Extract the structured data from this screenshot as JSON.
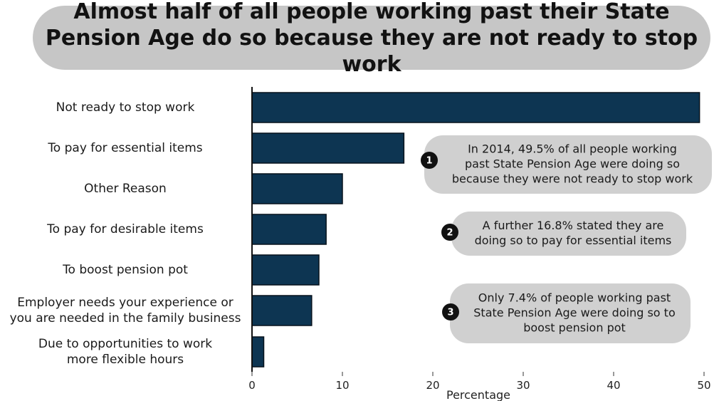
{
  "title": "Almost half of all people working past their State Pension Age do so because they are not ready to stop work",
  "chart_data": {
    "type": "bar",
    "orientation": "horizontal",
    "categories": [
      [
        "Not ready to stop work"
      ],
      [
        "To pay for essential items"
      ],
      [
        "Other Reason"
      ],
      [
        "To pay for desirable items"
      ],
      [
        "To boost pension pot"
      ],
      [
        "Employer needs your experience or",
        "you are needed in the family business"
      ],
      [
        "Due to opportunities to work",
        "more flexible hours"
      ]
    ],
    "values": [
      49.5,
      16.8,
      10.0,
      8.2,
      7.4,
      6.6,
      1.3
    ],
    "xlabel": "Percentage",
    "xlim": [
      0,
      50
    ],
    "xticks": [
      0,
      10,
      20,
      30,
      40,
      50
    ],
    "grid": false,
    "colors": {
      "bar": "#0d3552",
      "bar_stroke": "#07121c",
      "callout_bg": "#d0d0d0",
      "badge": "#111111",
      "title_banner": "#c6c6c6"
    }
  },
  "callouts": [
    {
      "number": "1",
      "lines": [
        "In 2014, 49.5% of all people working",
        "past State Pension Age were doing so",
        "because they were not ready to stop work"
      ]
    },
    {
      "number": "2",
      "lines": [
        "A further 16.8% stated they are",
        "doing so to pay for essential items"
      ]
    },
    {
      "number": "3",
      "lines": [
        "Only 7.4% of people working past",
        "State Pension Age were doing so to",
        "boost pension pot"
      ]
    }
  ]
}
